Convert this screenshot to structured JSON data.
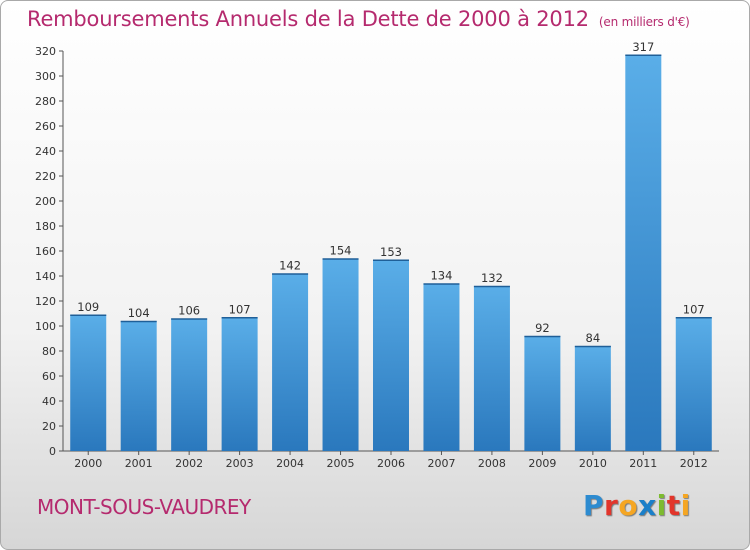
{
  "chart_data": {
    "type": "bar",
    "title": "Remboursements Annuels de la Dette de 2000 à 2012",
    "subtitle": "(en milliers d'€)",
    "xlabel": "",
    "ylabel": "",
    "categories": [
      "2000",
      "2001",
      "2002",
      "2003",
      "2004",
      "2005",
      "2006",
      "2007",
      "2008",
      "2009",
      "2010",
      "2011",
      "2012"
    ],
    "values": [
      109,
      104,
      106,
      107,
      142,
      154,
      153,
      134,
      132,
      92,
      84,
      317,
      107
    ],
    "ylim": [
      0,
      320
    ],
    "yticks": [
      0,
      20,
      40,
      60,
      80,
      100,
      120,
      140,
      160,
      180,
      200,
      220,
      240,
      260,
      280,
      300,
      320
    ],
    "grid": false,
    "legend": "none",
    "bar_color_top": "#5aaee8",
    "bar_color_bottom": "#2a78bd"
  },
  "footer": {
    "town": "MONT-SOUS-VAUDREY",
    "logo_letters": [
      "P",
      "r",
      "o",
      "x",
      "i",
      "t",
      "i"
    ],
    "logo_colors": [
      "#2d8bd0",
      "#e2352b",
      "#f5a623",
      "#1a7fc9",
      "#7dbb2f",
      "#e2352b",
      "#f5a623"
    ]
  },
  "colors": {
    "accent": "#b52a6e"
  }
}
